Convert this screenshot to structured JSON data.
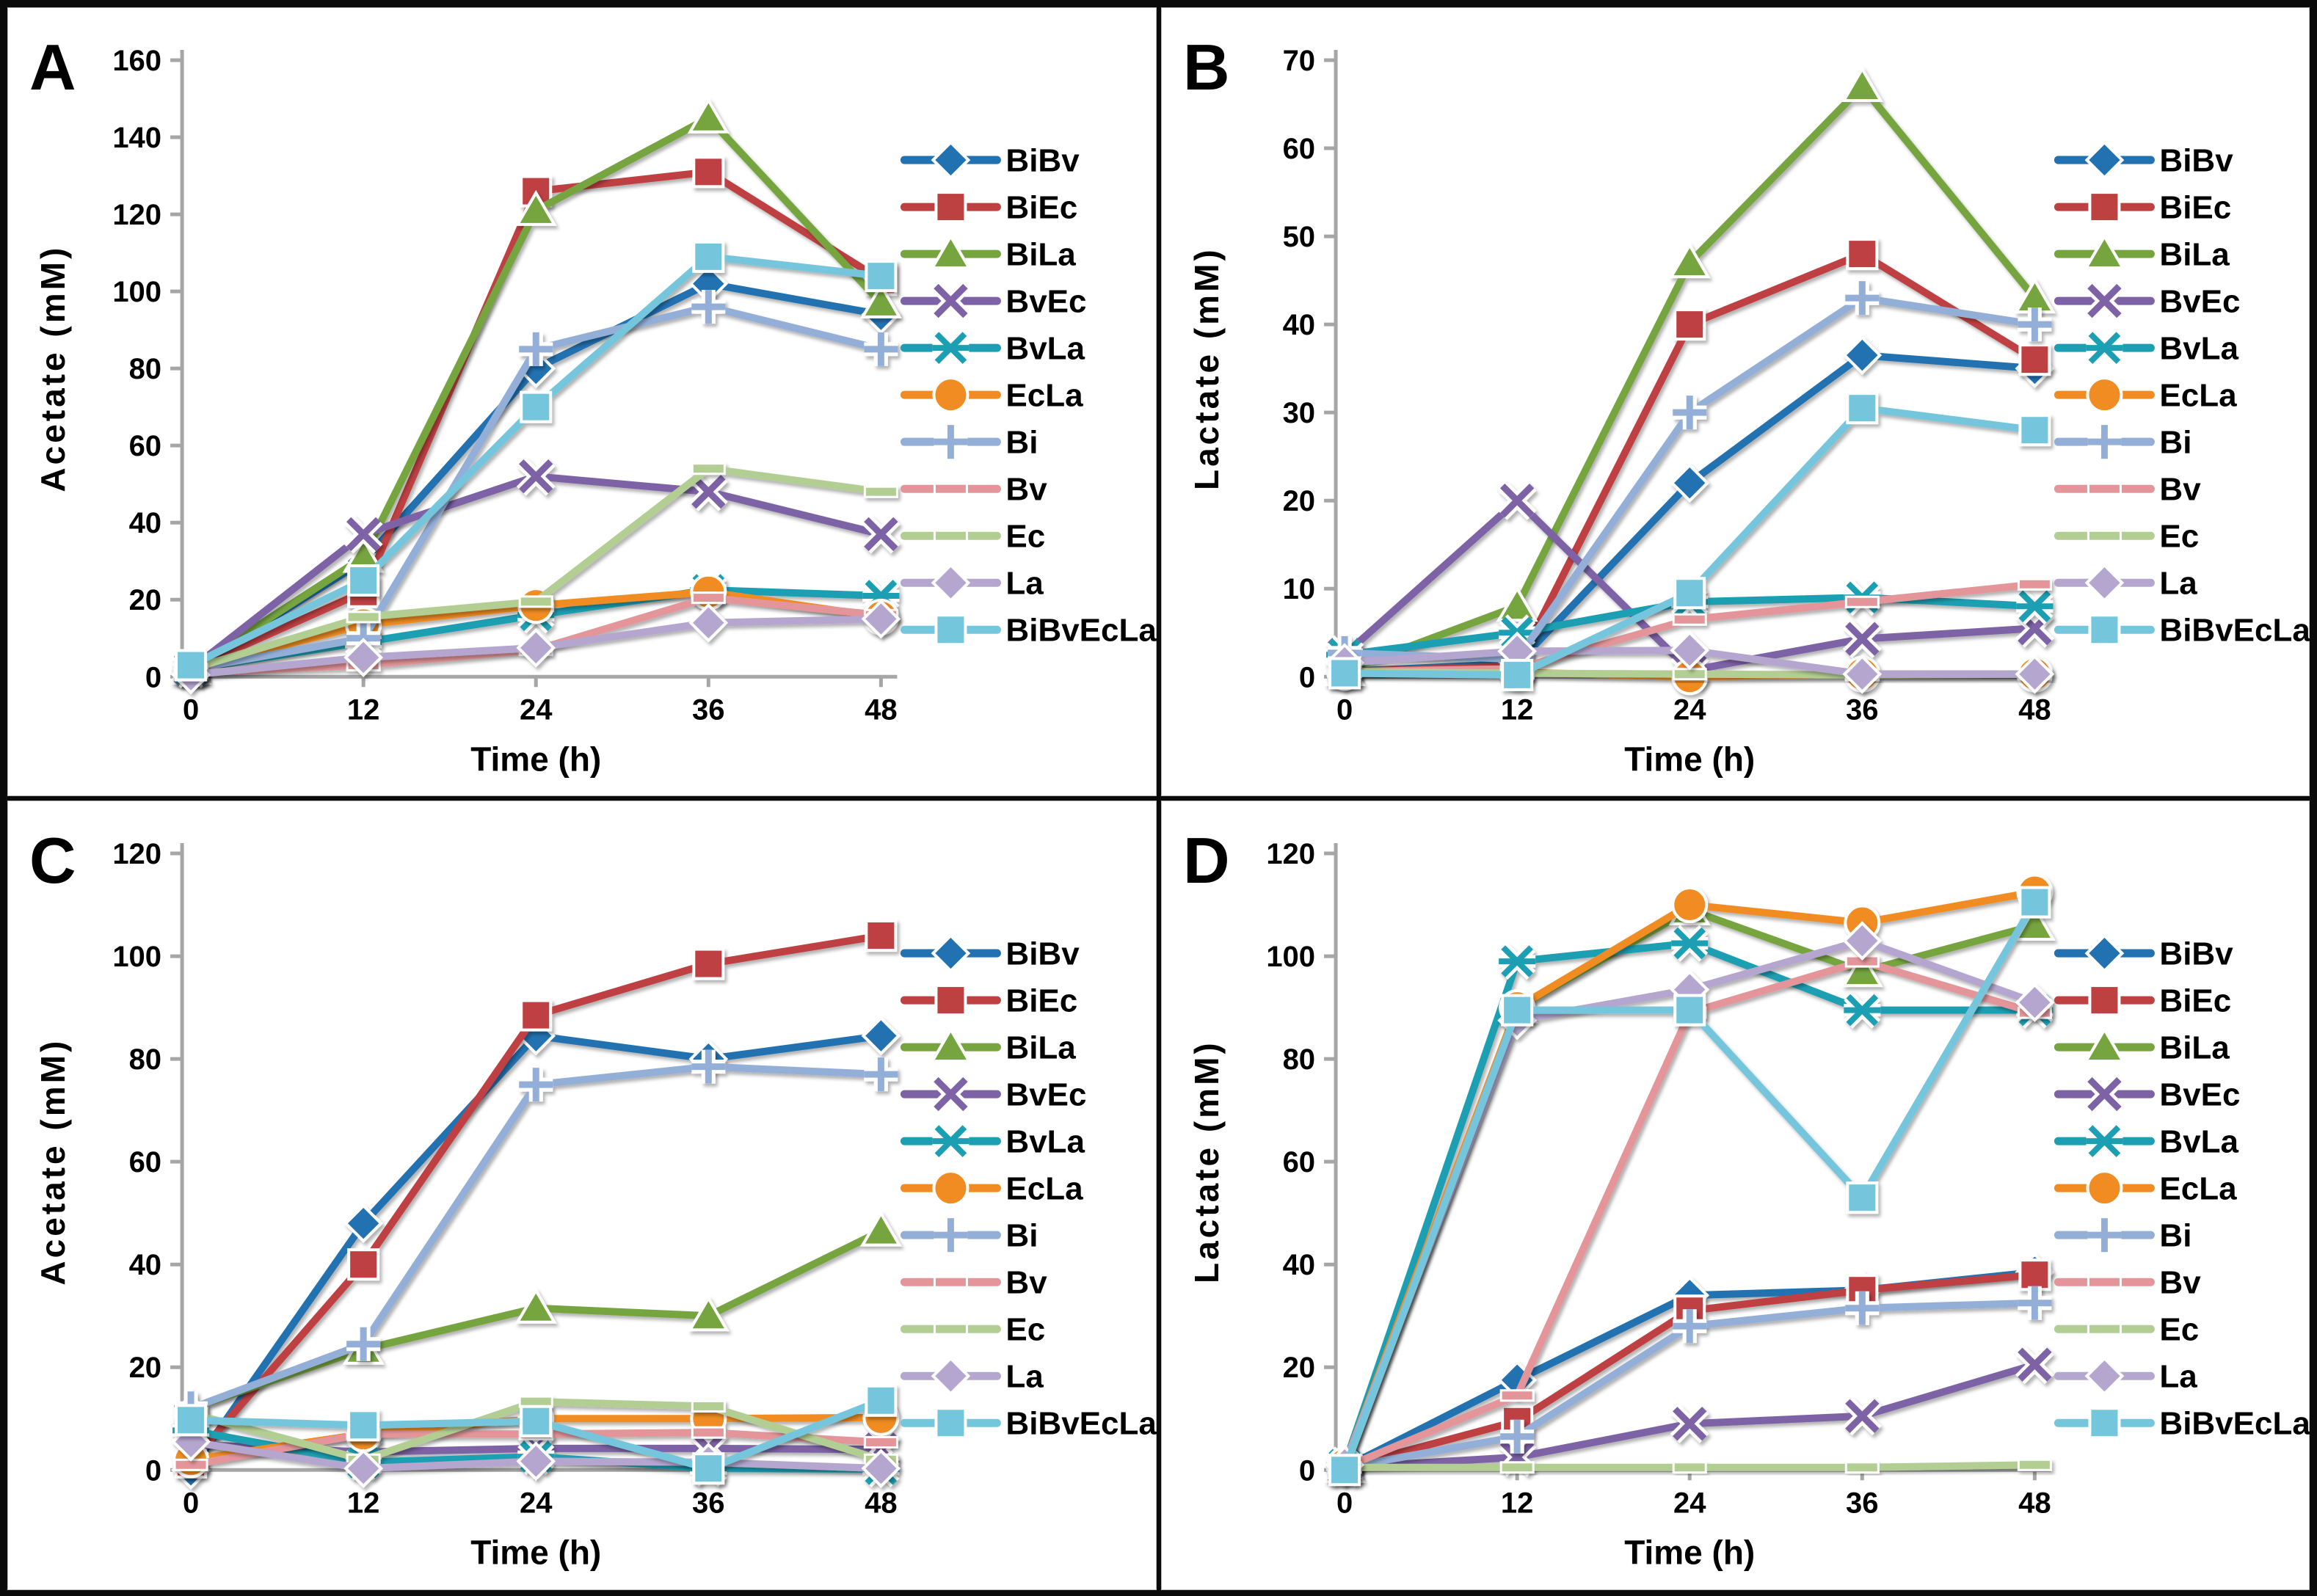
{
  "figure": {
    "background": "#ffffff",
    "border_color": "#0a0a0a",
    "axis_color": "#a6a6a6",
    "text_color": "#000000"
  },
  "legend": {
    "position": "right",
    "items": [
      {
        "label": "BiBv",
        "color": "#2272b2",
        "marker": "diamond"
      },
      {
        "label": "BiEc",
        "color": "#be4142",
        "marker": "square"
      },
      {
        "label": "BiLa",
        "color": "#76a53f",
        "marker": "triangle"
      },
      {
        "label": "BvEc",
        "color": "#7d62a6",
        "marker": "x"
      },
      {
        "label": "BvLa",
        "color": "#1c9fb2",
        "marker": "star"
      },
      {
        "label": "EcLa",
        "color": "#f08c22",
        "marker": "circle"
      },
      {
        "label": "Bi",
        "color": "#93afd8",
        "marker": "plus"
      },
      {
        "label": "Bv",
        "color": "#e39599",
        "marker": "dash"
      },
      {
        "label": "Ec",
        "color": "#b3ce92",
        "marker": "dash"
      },
      {
        "label": "La",
        "color": "#b4a6cf",
        "marker": "diamond"
      },
      {
        "label": "BiBvEcLa",
        "color": "#74c6dc",
        "marker": "square"
      }
    ]
  },
  "chart_data": [
    {
      "panel": "A",
      "type": "line",
      "title": "",
      "xlabel": "Time (h)",
      "ylabel": "Acetate (mM)",
      "x": [
        0,
        12,
        24,
        36,
        48
      ],
      "ylim": [
        0,
        160
      ],
      "ytick": 20,
      "grid": false,
      "series": [
        {
          "name": "BiBv",
          "values": [
            2,
            30,
            80,
            102,
            94
          ]
        },
        {
          "name": "BiEc",
          "values": [
            2,
            22,
            126,
            131,
            103
          ]
        },
        {
          "name": "BiLa",
          "values": [
            2,
            31,
            121,
            145,
            97
          ]
        },
        {
          "name": "BvEc",
          "values": [
            2,
            37,
            52,
            48,
            37
          ]
        },
        {
          "name": "BvLa",
          "values": [
            2,
            9,
            16,
            22.5,
            21
          ]
        },
        {
          "name": "EcLa",
          "values": [
            2,
            13.5,
            18.5,
            22,
            15.5
          ]
        },
        {
          "name": "Bi",
          "values": [
            2,
            10,
            85,
            96,
            85
          ]
        },
        {
          "name": "Bv",
          "values": [
            1,
            3,
            7,
            20.5,
            16
          ]
        },
        {
          "name": "Ec",
          "values": [
            2,
            15.5,
            19.5,
            54,
            48
          ]
        },
        {
          "name": "La",
          "values": [
            0.5,
            5,
            7.5,
            14,
            15
          ]
        },
        {
          "name": "BiBvEcLa",
          "values": [
            3,
            25,
            70,
            109,
            104
          ]
        }
      ]
    },
    {
      "panel": "B",
      "type": "line",
      "title": "",
      "xlabel": "Time (h)",
      "ylabel": "Lactate (mM)",
      "x": [
        0,
        12,
        24,
        36,
        48
      ],
      "ylim": [
        0,
        70
      ],
      "ytick": 10,
      "grid": false,
      "series": [
        {
          "name": "BiBv",
          "values": [
            0.6,
            1.5,
            22,
            36.5,
            35
          ]
        },
        {
          "name": "BiEc",
          "values": [
            0.6,
            1.2,
            40,
            48,
            36
          ]
        },
        {
          "name": "BiLa",
          "values": [
            0.7,
            8,
            47,
            67,
            43
          ]
        },
        {
          "name": "BvEc",
          "values": [
            2.5,
            20,
            0.7,
            4.3,
            5.5
          ]
        },
        {
          "name": "BvLa",
          "values": [
            2.5,
            5,
            8.5,
            9,
            8
          ]
        },
        {
          "name": "EcLa",
          "values": [
            0.5,
            0.5,
            0,
            0.3,
            0.3
          ]
        },
        {
          "name": "Bi",
          "values": [
            2.7,
            2,
            30,
            43,
            40
          ]
        },
        {
          "name": "Bv",
          "values": [
            0.6,
            0.9,
            6.5,
            8.5,
            10.5
          ]
        },
        {
          "name": "Ec",
          "values": [
            0.6,
            0.4,
            0.3,
            0.2,
            0.3
          ]
        },
        {
          "name": "La",
          "values": [
            1.6,
            2.9,
            3,
            0.3,
            0.3
          ]
        },
        {
          "name": "BiBvEcLa",
          "values": [
            0.4,
            0.2,
            9.5,
            30.5,
            28
          ]
        }
      ]
    },
    {
      "panel": "C",
      "type": "line",
      "title": "",
      "xlabel": "Time (h)",
      "ylabel": "Acetate (mM)",
      "x": [
        0,
        12,
        24,
        36,
        48
      ],
      "ylim": [
        0,
        120
      ],
      "ytick": 20,
      "grid": false,
      "series": [
        {
          "name": "BiBv",
          "values": [
            0,
            48,
            84.5,
            80,
            84.5
          ]
        },
        {
          "name": "BiEc",
          "values": [
            1.5,
            40,
            88.5,
            98.5,
            104
          ]
        },
        {
          "name": "BiLa",
          "values": [
            12,
            23.5,
            31.5,
            30,
            46.5
          ]
        },
        {
          "name": "BvEc",
          "values": [
            5,
            3.5,
            4.2,
            4.2,
            4
          ]
        },
        {
          "name": "BvLa",
          "values": [
            7.7,
            1.5,
            2.6,
            0.3,
            0.2
          ]
        },
        {
          "name": "EcLa",
          "values": [
            2,
            7,
            10,
            10,
            10.2
          ]
        },
        {
          "name": "Bi",
          "values": [
            12,
            24.5,
            75,
            78.5,
            77
          ]
        },
        {
          "name": "Bv",
          "values": [
            1,
            7,
            7,
            7.3,
            5.4
          ]
        },
        {
          "name": "Ec",
          "values": [
            11,
            2,
            13.3,
            12.4,
            2
          ]
        },
        {
          "name": "La",
          "values": [
            5.5,
            0.3,
            1.7,
            1.5,
            0.3
          ]
        },
        {
          "name": "BiBvEcLa",
          "values": [
            9.7,
            8.7,
            9.5,
            0.3,
            13.5
          ]
        }
      ]
    },
    {
      "panel": "D",
      "type": "line",
      "title": "",
      "xlabel": "Time (h)",
      "ylabel": "Lactate (mM)",
      "x": [
        0,
        12,
        24,
        36,
        48
      ],
      "ylim": [
        0,
        120
      ],
      "ytick": 20,
      "grid": false,
      "series": [
        {
          "name": "BiBv",
          "values": [
            0.5,
            17.5,
            34,
            35,
            38.5
          ]
        },
        {
          "name": "BiEc",
          "values": [
            0.5,
            9.5,
            31,
            35,
            38
          ]
        },
        {
          "name": "BiLa",
          "values": [
            0.5,
            90,
            109,
            97,
            106
          ]
        },
        {
          "name": "BvEc",
          "values": [
            0.5,
            2.5,
            9,
            10.5,
            20.5
          ]
        },
        {
          "name": "BvLa",
          "values": [
            1,
            99,
            102.5,
            89.5,
            89.5
          ]
        },
        {
          "name": "EcLa",
          "values": [
            1,
            90,
            110,
            106.5,
            112.5
          ]
        },
        {
          "name": "Bi",
          "values": [
            0.5,
            6.5,
            28,
            31.5,
            32.5
          ]
        },
        {
          "name": "Bv",
          "values": [
            0.5,
            14.5,
            89,
            99,
            89
          ]
        },
        {
          "name": "Ec",
          "values": [
            0.5,
            0.5,
            0.5,
            0.5,
            1
          ]
        },
        {
          "name": "La",
          "values": [
            1,
            87.5,
            93.5,
            103,
            91
          ]
        },
        {
          "name": "BiBvEcLa",
          "values": [
            0,
            89.5,
            89.5,
            53,
            110.5
          ]
        }
      ]
    }
  ]
}
